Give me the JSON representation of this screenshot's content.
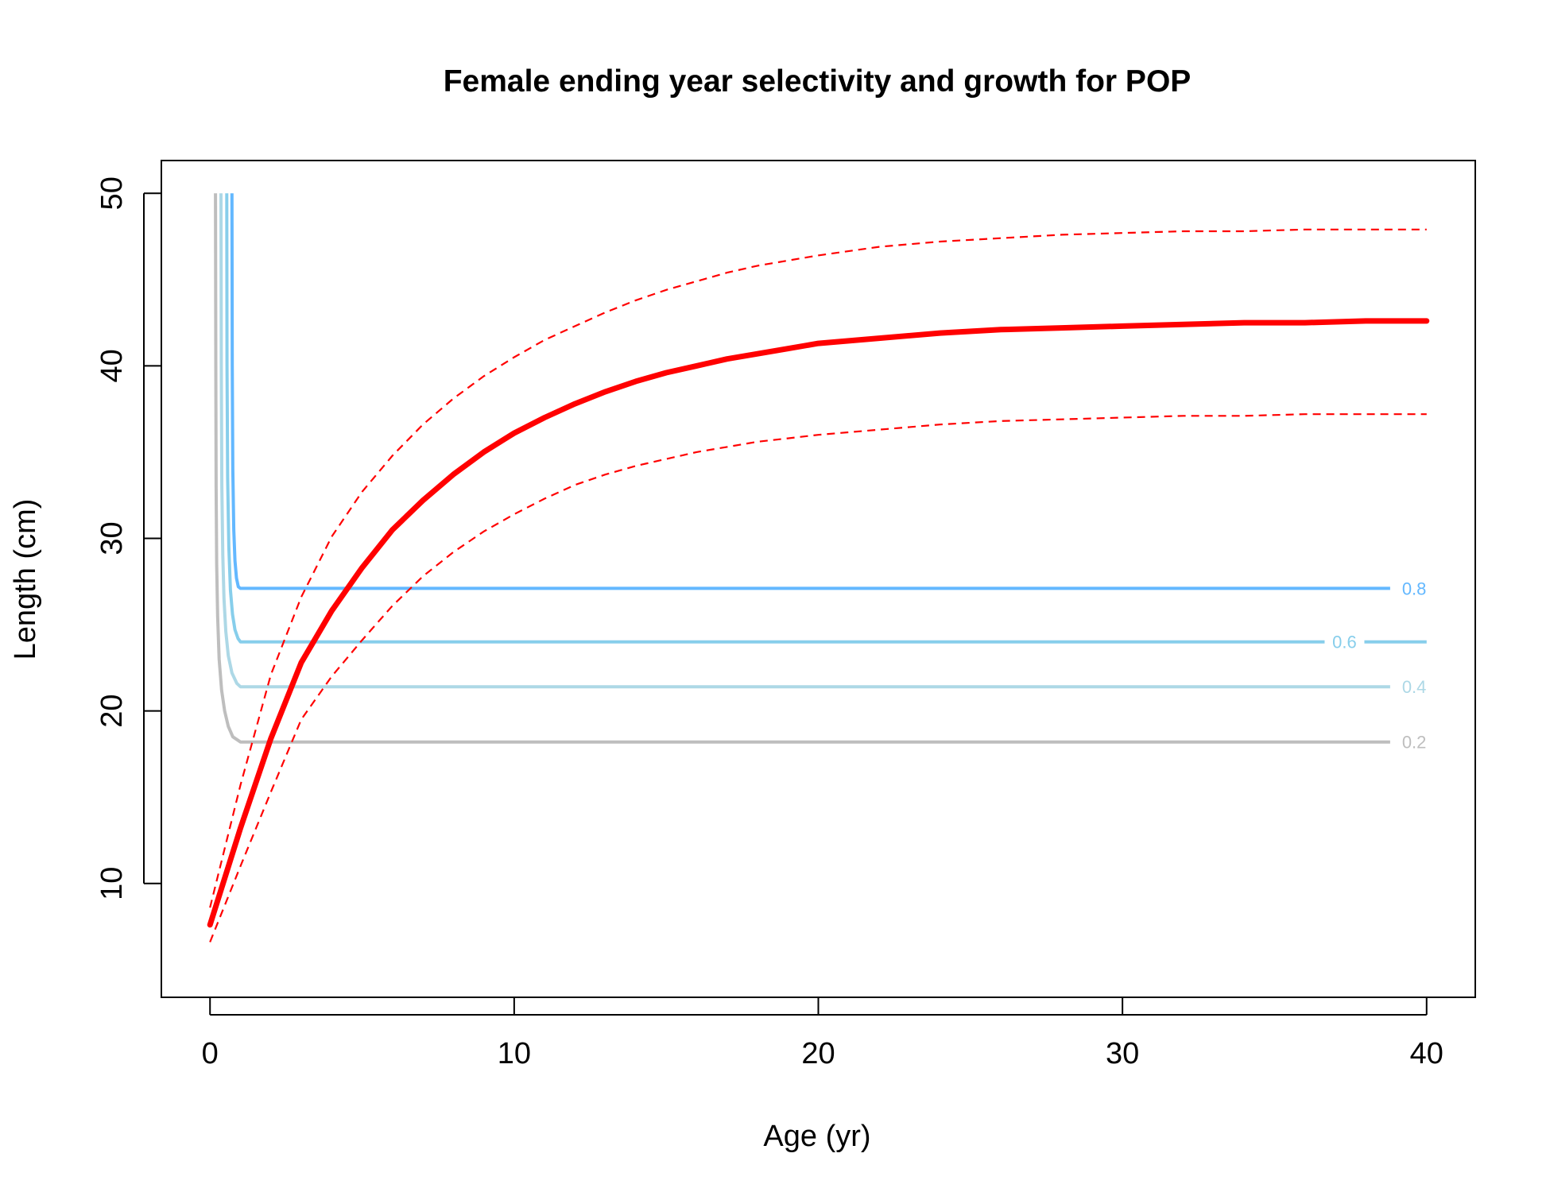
{
  "chart_data": {
    "type": "line",
    "title": "Female ending year selectivity and growth for POP",
    "xlabel": "Age (yr)",
    "ylabel": "Length (cm)",
    "xlim": [
      -1.6,
      41.6
    ],
    "ylim": [
      3.4,
      51.9
    ],
    "x_ticks": [
      0,
      10,
      20,
      30,
      40
    ],
    "y_ticks": [
      10,
      20,
      30,
      40,
      50
    ],
    "colors": {
      "growth": "#ff0000",
      "sel_0_2": "#bebebe",
      "sel_0_4": "#add8e6",
      "sel_0_6": "#87ceeb",
      "sel_0_8": "#63b8ff"
    },
    "growth_mean": {
      "x": [
        0,
        1,
        2,
        3,
        4,
        5,
        6,
        7,
        8,
        9,
        10,
        11,
        12,
        13,
        14,
        15,
        16,
        17,
        18,
        19,
        20,
        22,
        24,
        26,
        28,
        30,
        32,
        34,
        36,
        38,
        40
      ],
      "y": [
        7.6,
        13.2,
        18.4,
        22.8,
        25.8,
        28.3,
        30.5,
        32.2,
        33.7,
        35.0,
        36.1,
        37.0,
        37.8,
        38.5,
        39.1,
        39.6,
        40.0,
        40.4,
        40.7,
        41.0,
        41.3,
        41.6,
        41.9,
        42.1,
        42.2,
        42.3,
        42.4,
        42.5,
        42.5,
        42.6,
        42.6
      ]
    },
    "growth_upper": {
      "x": [
        0,
        1,
        2,
        3,
        4,
        5,
        6,
        7,
        8,
        9,
        10,
        11,
        12,
        13,
        14,
        15,
        16,
        17,
        18,
        19,
        20,
        22,
        24,
        26,
        28,
        30,
        32,
        34,
        36,
        38,
        40
      ],
      "y": [
        8.6,
        15.7,
        22.1,
        26.6,
        30.1,
        32.7,
        34.8,
        36.6,
        38.1,
        39.4,
        40.5,
        41.5,
        42.3,
        43.1,
        43.8,
        44.4,
        44.9,
        45.4,
        45.8,
        46.1,
        46.4,
        46.9,
        47.2,
        47.4,
        47.6,
        47.7,
        47.8,
        47.8,
        47.9,
        47.9,
        47.9
      ]
    },
    "growth_lower": {
      "x": [
        0,
        1,
        2,
        3,
        4,
        5,
        6,
        7,
        8,
        9,
        10,
        11,
        12,
        13,
        14,
        15,
        16,
        17,
        18,
        19,
        20,
        22,
        24,
        26,
        28,
        30,
        32,
        34,
        36,
        38,
        40
      ],
      "y": [
        6.6,
        11.0,
        15.3,
        19.5,
        22.0,
        24.1,
        26.1,
        27.8,
        29.2,
        30.4,
        31.4,
        32.3,
        33.1,
        33.7,
        34.2,
        34.6,
        35.0,
        35.3,
        35.6,
        35.8,
        36.0,
        36.3,
        36.6,
        36.8,
        36.9,
        37.0,
        37.1,
        37.1,
        37.2,
        37.2,
        37.2
      ]
    },
    "selectivity_contours": [
      {
        "label": "0.2",
        "color_key": "sel_0_2",
        "x": [
          0.18,
          0.19,
          0.2,
          0.22,
          0.25,
          0.3,
          0.38,
          0.48,
          0.6,
          0.75,
          1.0,
          38.8
        ],
        "y": [
          50,
          40,
          33,
          28.5,
          25.5,
          23,
          21.2,
          20.0,
          19.1,
          18.5,
          18.2,
          18.2
        ]
      },
      {
        "label": "0.4",
        "color_key": "sel_0_4",
        "x": [
          0.36,
          0.37,
          0.39,
          0.42,
          0.46,
          0.52,
          0.6,
          0.72,
          0.88,
          1.0,
          38.8
        ],
        "y": [
          50,
          40,
          33,
          29,
          26.5,
          24.6,
          23.2,
          22.2,
          21.6,
          21.4,
          21.4
        ]
      },
      {
        "label": "0.6",
        "color_key": "sel_0_6",
        "x": [
          0.55,
          0.56,
          0.58,
          0.62,
          0.67,
          0.74,
          0.82,
          0.92,
          1.0,
          40
        ],
        "y": [
          50,
          40,
          33.5,
          29.5,
          27,
          25.6,
          24.7,
          24.2,
          24.0,
          24.0
        ]
      },
      {
        "label": "0.8",
        "color_key": "sel_0_8",
        "x": [
          0.72,
          0.73,
          0.75,
          0.78,
          0.82,
          0.87,
          0.93,
          1.0,
          38.8
        ],
        "y": [
          50,
          40,
          34,
          30.5,
          28.7,
          27.7,
          27.2,
          27.1,
          27.1
        ]
      }
    ]
  }
}
